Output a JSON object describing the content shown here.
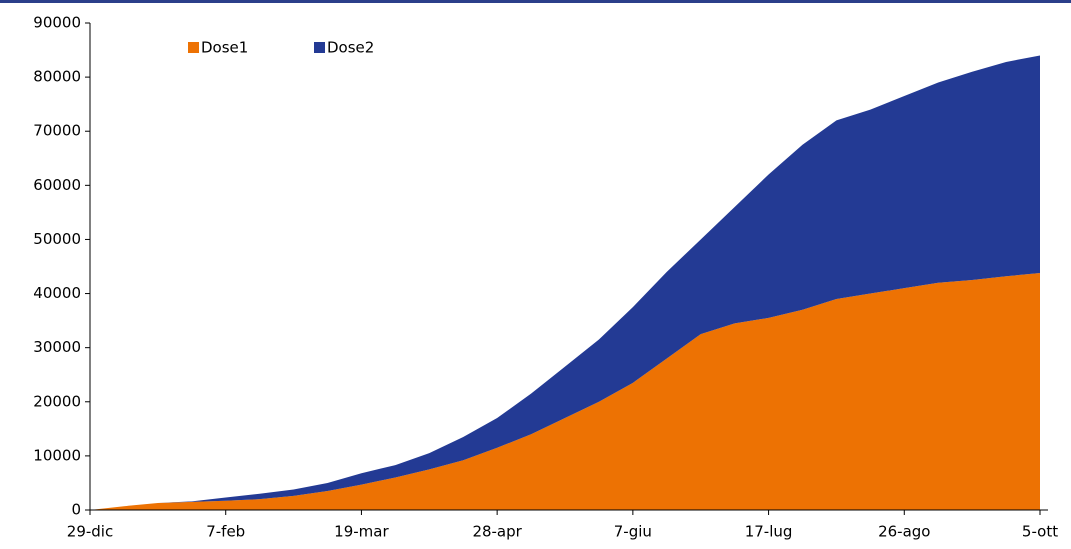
{
  "chart_data": {
    "type": "stacked-area",
    "categories": [
      "29-dic",
      null,
      null,
      null,
      "7-feb",
      null,
      null,
      null,
      "19-mar",
      null,
      null,
      null,
      "28-apr",
      null,
      null,
      null,
      "7-giu",
      null,
      null,
      null,
      "17-lug",
      null,
      null,
      null,
      "26-ago",
      null,
      null,
      null,
      "5-ott"
    ],
    "series": [
      {
        "name": "Dose1",
        "color": "#ed7203",
        "values": [
          0,
          700,
          1300,
          1500,
          1700,
          2000,
          2600,
          3500,
          4700,
          6000,
          7500,
          9200,
          11500,
          14000,
          17000,
          20000,
          23500,
          28000,
          32500,
          34500,
          35500,
          37000,
          39000,
          40000,
          41000,
          42000,
          42500,
          43200,
          43800
        ]
      },
      {
        "name": "Dose2",
        "color": "#233a94",
        "values": [
          0,
          0,
          0,
          100,
          600,
          1000,
          1200,
          1500,
          2100,
          2300,
          3000,
          4300,
          5500,
          7500,
          9500,
          11500,
          14000,
          16000,
          17500,
          21500,
          26500,
          30500,
          33000,
          34000,
          35500,
          37000,
          38500,
          39600,
          40200
        ]
      }
    ],
    "ylim": [
      0,
      90000
    ],
    "yticks": [
      0,
      10000,
      20000,
      30000,
      40000,
      50000,
      60000,
      70000,
      80000,
      90000
    ],
    "legend": "top-left"
  }
}
